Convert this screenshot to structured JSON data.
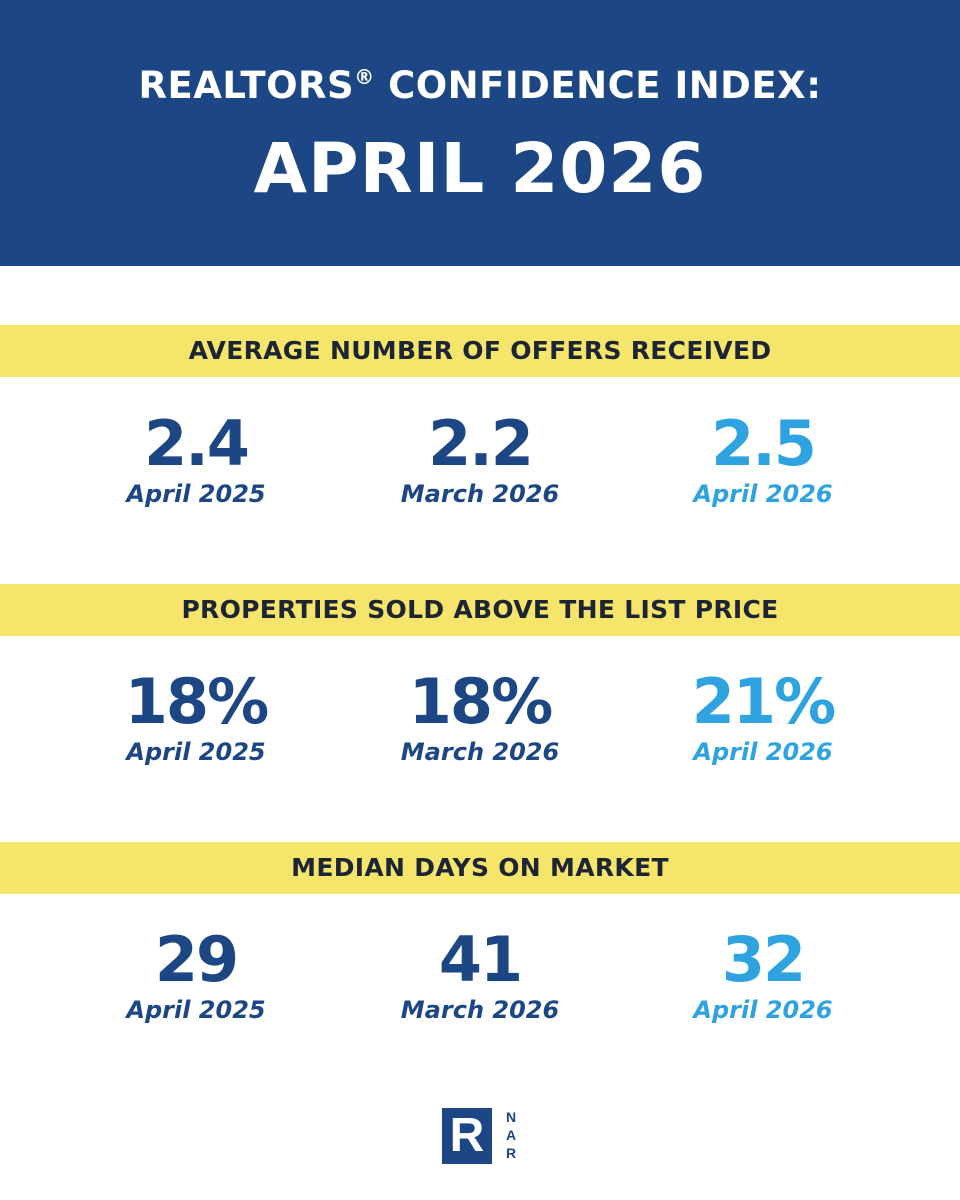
{
  "header": {
    "title_line1": "REALTORS",
    "registered_mark": "®",
    "title_line1_suffix": " CONFIDENCE INDEX:",
    "title_line2": "APRIL 2026"
  },
  "sections": [
    {
      "title": "AVERAGE NUMBER OF OFFERS RECEIVED",
      "stats": [
        {
          "value": "2.4",
          "label": "April 2025"
        },
        {
          "value": "2.2",
          "label": "March 2026"
        },
        {
          "value": "2.5",
          "label": "April 2026"
        }
      ]
    },
    {
      "title": "PROPERTIES SOLD ABOVE THE LIST PRICE",
      "stats": [
        {
          "value": "18%",
          "label": "April 2025"
        },
        {
          "value": "18%",
          "label": "March 2026"
        },
        {
          "value": "21%",
          "label": "April 2026"
        }
      ]
    },
    {
      "title": "MEDIAN DAYS ON MARKET",
      "stats": [
        {
          "value": "29",
          "label": "April 2025"
        },
        {
          "value": "41",
          "label": "March 2026"
        },
        {
          "value": "32",
          "label": "April 2026"
        }
      ]
    }
  ],
  "logo": {
    "letter": "R",
    "text": "NAR"
  },
  "colors": {
    "header_bg": "#1d4685",
    "section_bar_bg": "#f5e66b",
    "dark_value": "#1d4685",
    "highlight_value": "#2ea3e0"
  }
}
